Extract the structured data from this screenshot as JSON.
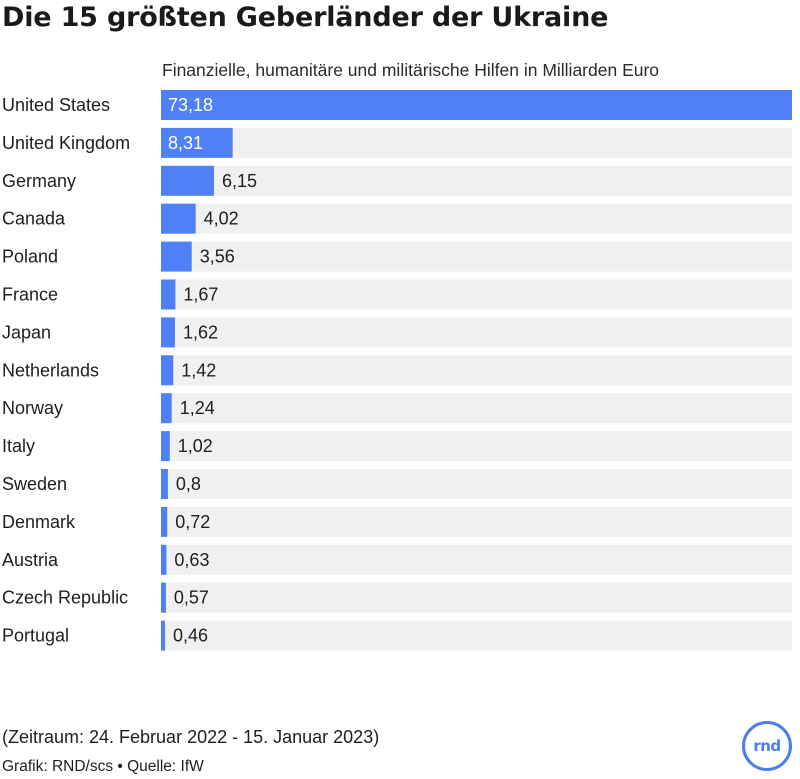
{
  "title": "Die 15 größten Geberländer der Ukraine",
  "subtitle": "Finanzielle, humanitäre und militärische Hilfen in Milliarden Euro",
  "footer": {
    "period": "(Zeitraum: 24. Februar 2022 - 15. Januar 2023)",
    "credit": "Grafik: RND/scs • Quelle: IfW"
  },
  "logo_text": "rnd",
  "colors": {
    "bar": "#4f80f5",
    "track": "#f0f0f0",
    "logo": "#4a7cf2"
  },
  "chart_data": {
    "type": "bar",
    "orientation": "horizontal",
    "categories": [
      "United States",
      "United Kingdom",
      "Germany",
      "Canada",
      "Poland",
      "France",
      "Japan",
      "Netherlands",
      "Norway",
      "Italy",
      "Sweden",
      "Denmark",
      "Austria",
      "Czech Republic",
      "Portugal"
    ],
    "values": [
      73.18,
      8.31,
      6.15,
      4.02,
      3.56,
      1.67,
      1.62,
      1.42,
      1.24,
      1.02,
      0.8,
      0.72,
      0.63,
      0.57,
      0.46
    ],
    "value_labels": [
      "73,18",
      "8,31",
      "6,15",
      "4,02",
      "3,56",
      "1,67",
      "1,62",
      "1,42",
      "1,24",
      "1,02",
      "0,8",
      "0,72",
      "0,63",
      "0,57",
      "0,46"
    ],
    "xlim": [
      0,
      73.18
    ],
    "grid": false,
    "legend": "none"
  }
}
